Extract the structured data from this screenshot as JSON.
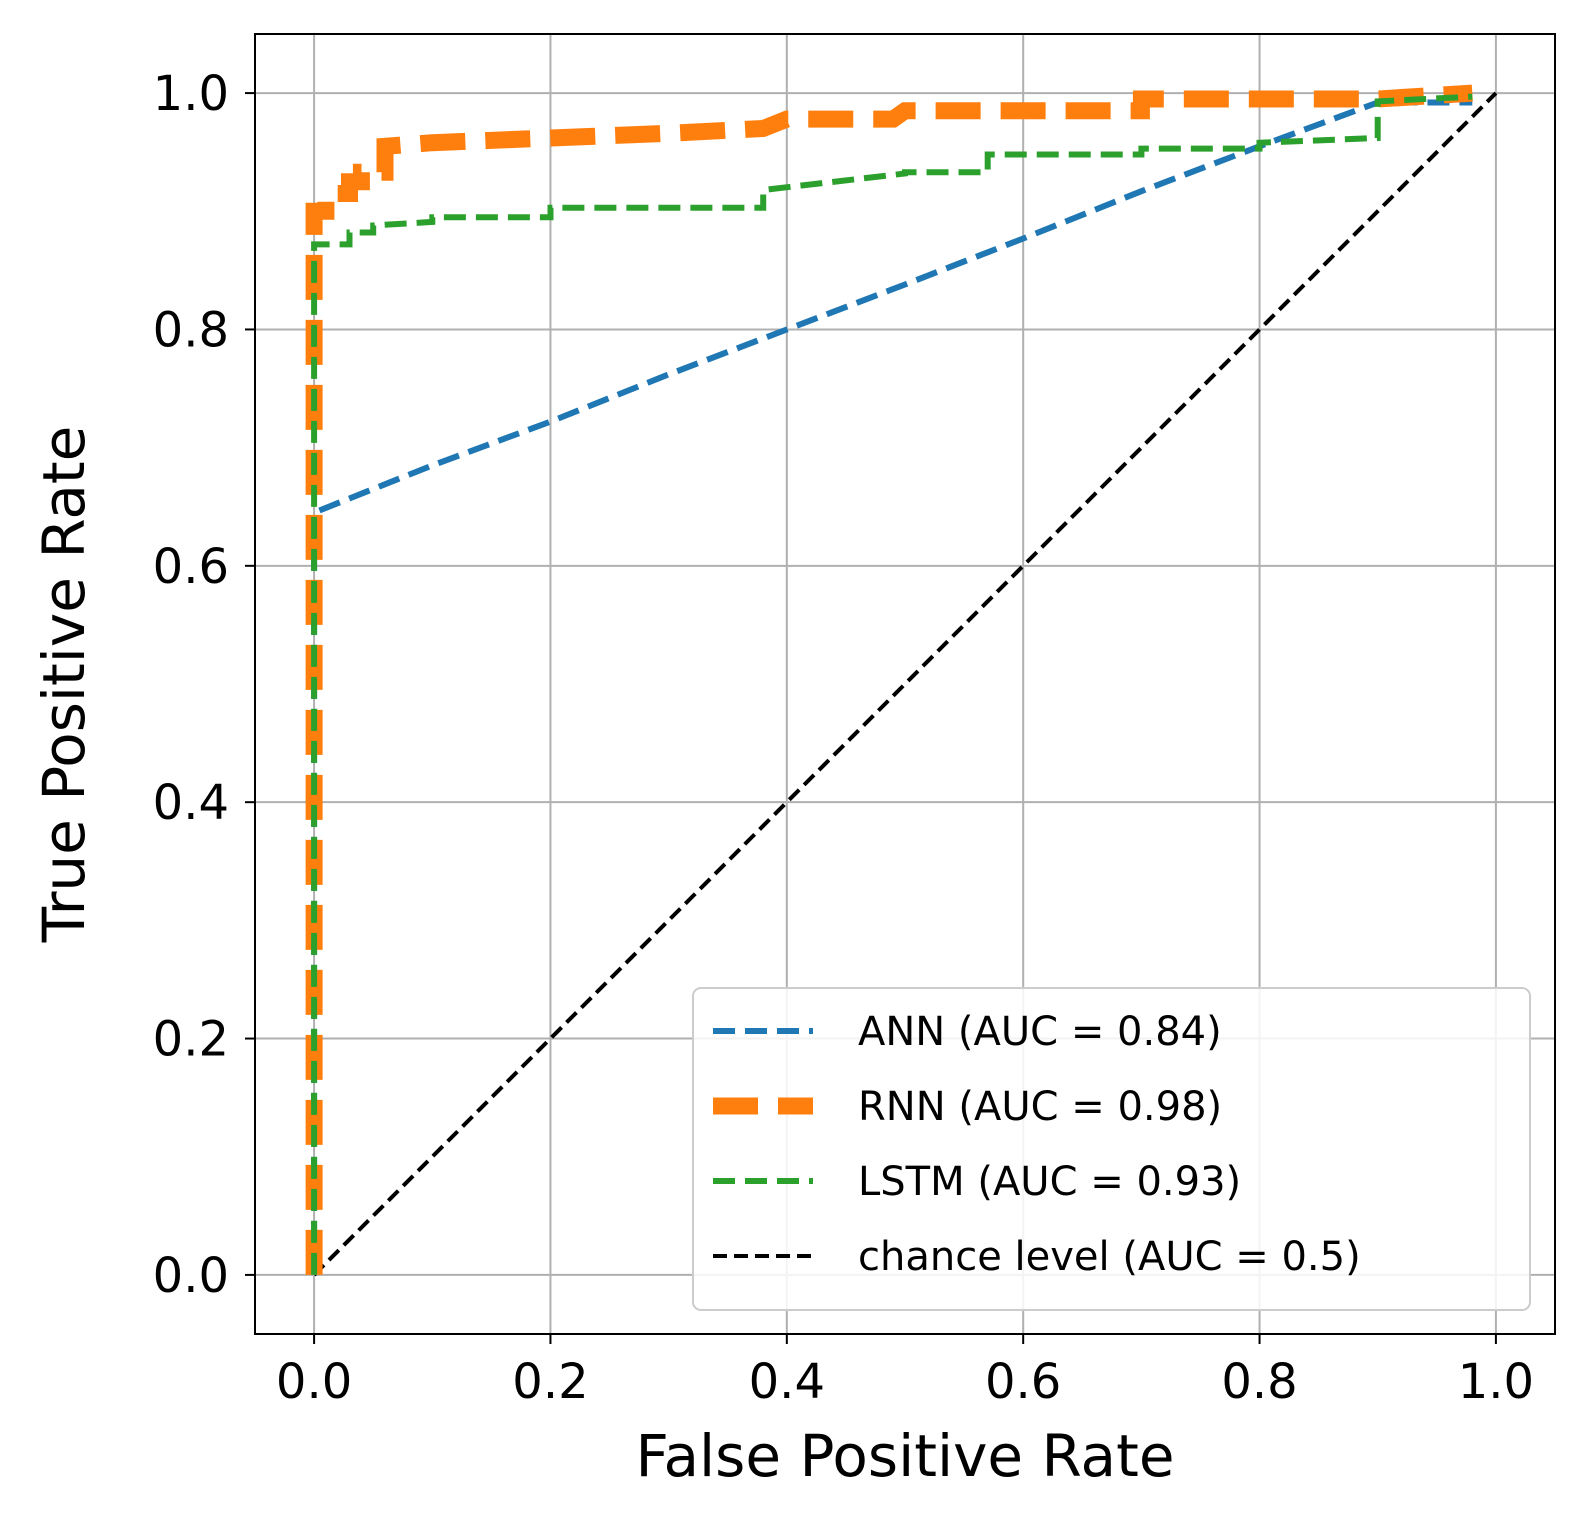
{
  "chart_data": {
    "type": "line",
    "title": "",
    "xlabel": "False Positive Rate",
    "ylabel": "True Positive Rate",
    "xlim": [
      -0.05,
      1.05
    ],
    "ylim": [
      -0.05,
      1.05
    ],
    "xticks": [
      0.0,
      0.2,
      0.4,
      0.6,
      0.8,
      1.0
    ],
    "yticks": [
      0.0,
      0.2,
      0.4,
      0.6,
      0.8,
      1.0
    ],
    "xtick_labels": [
      "0.0",
      "0.2",
      "0.4",
      "0.6",
      "0.8",
      "1.0"
    ],
    "ytick_labels": [
      "0.0",
      "0.2",
      "0.4",
      "0.6",
      "0.8",
      "1.0"
    ],
    "grid": true,
    "legend_position": "lower-right",
    "series": [
      {
        "name": "ANN (AUC = 0.84)",
        "color": "#1f77b4",
        "style": "dashed-medium",
        "x": [
          0.0,
          0.0,
          0.05,
          0.1,
          0.2,
          0.3,
          0.4,
          0.5,
          0.6,
          0.7,
          0.8,
          0.9,
          0.98
        ],
        "y": [
          0.0,
          0.645,
          0.665,
          0.685,
          0.722,
          0.762,
          0.8,
          0.838,
          0.877,
          0.917,
          0.955,
          0.992,
          0.992
        ]
      },
      {
        "name": "RNN (AUC = 0.98)",
        "color": "#ff7f0e",
        "style": "dashed-thick",
        "x": [
          0.0,
          0.0,
          0.01,
          0.01,
          0.03,
          0.03,
          0.04,
          0.04,
          0.06,
          0.06,
          0.1,
          0.2,
          0.3,
          0.38,
          0.4,
          0.49,
          0.5,
          0.7,
          0.7,
          0.9,
          0.98
        ],
        "y": [
          0.0,
          0.9,
          0.9,
          0.915,
          0.915,
          0.925,
          0.925,
          0.933,
          0.933,
          0.955,
          0.958,
          0.962,
          0.966,
          0.97,
          0.978,
          0.978,
          0.985,
          0.985,
          0.995,
          0.995,
          1.0
        ]
      },
      {
        "name": "LSTM (AUC = 0.93)",
        "color": "#2ca02c",
        "style": "dashed-medium",
        "x": [
          0.0,
          0.0,
          0.03,
          0.03,
          0.05,
          0.05,
          0.1,
          0.1,
          0.2,
          0.2,
          0.38,
          0.38,
          0.5,
          0.5,
          0.57,
          0.57,
          0.7,
          0.7,
          0.8,
          0.8,
          0.9,
          0.9,
          0.98
        ],
        "y": [
          0.0,
          0.872,
          0.872,
          0.882,
          0.882,
          0.888,
          0.891,
          0.895,
          0.895,
          0.903,
          0.903,
          0.918,
          0.932,
          0.933,
          0.933,
          0.948,
          0.948,
          0.953,
          0.953,
          0.958,
          0.962,
          0.993,
          0.997
        ]
      },
      {
        "name": "chance level (AUC = 0.5)",
        "color": "#000000",
        "style": "dashed-thin",
        "x": [
          0.0,
          1.0
        ],
        "y": [
          0.0,
          1.0
        ]
      }
    ]
  }
}
